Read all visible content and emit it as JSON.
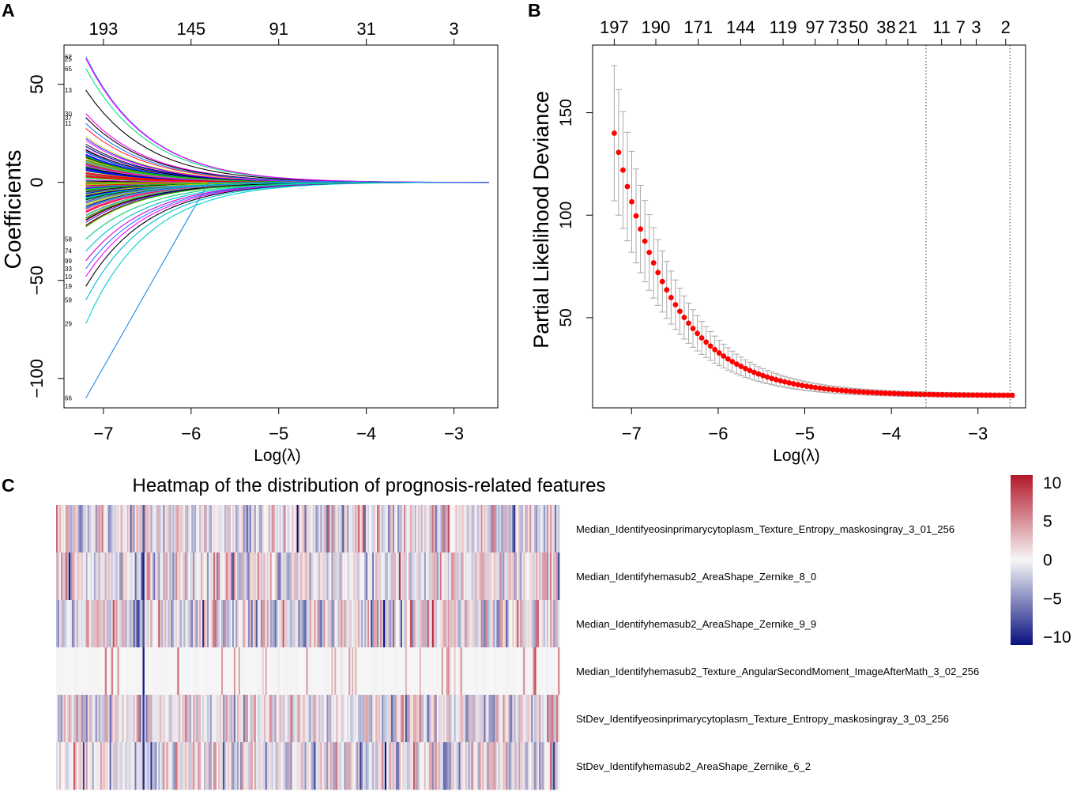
{
  "panels": {
    "a": {
      "label": "A"
    },
    "b": {
      "label": "B"
    },
    "c": {
      "label": "C"
    }
  },
  "chart_data": [
    {
      "id": "A",
      "type": "line",
      "title": "",
      "xlabel": "Log(λ)",
      "ylabel": "Coefficients",
      "xlim": [
        -7.45,
        -2.5
      ],
      "ylim": [
        -115,
        70
      ],
      "x_ticks": [
        -7,
        -6,
        -5,
        -4,
        -3
      ],
      "y_ticks": [
        50,
        0,
        -50,
        -100
      ],
      "top_axis": {
        "ticks_x": [
          -7.0,
          -6.0,
          -5.0,
          -4.0,
          -3.0
        ],
        "labels": [
          "193",
          "145",
          "91",
          "31",
          "3"
        ]
      },
      "lambda_start": -7.2,
      "lambda_end": -2.6,
      "series_count": 197,
      "featured_paths": [
        {
          "end_coef": -110,
          "label": "66",
          "color": "#1e88e5",
          "shape": "linear"
        },
        {
          "end_coef": -72,
          "label": "29",
          "color": "#00cfcf",
          "shape": "fast"
        },
        {
          "end_coef": -60,
          "label": "59",
          "color": "#00bcd4",
          "shape": "fast"
        },
        {
          "end_coef": -53,
          "label": "19",
          "color": "#000000",
          "shape": "fast"
        },
        {
          "end_coef": -48,
          "label": "10",
          "color": "#ff00ff",
          "shape": "fast"
        },
        {
          "end_coef": -44,
          "label": "33",
          "color": "#2979ff",
          "shape": "fast"
        },
        {
          "end_coef": -40,
          "label": "99",
          "color": "#cc00cc",
          "shape": "fast"
        },
        {
          "end_coef": -35,
          "label": "74",
          "color": "#00bcd4",
          "shape": "fast"
        },
        {
          "end_coef": -29,
          "label": "58",
          "color": "#00e676",
          "shape": "fast"
        },
        {
          "end_coef": 58,
          "label": "65",
          "color": "#00e676",
          "shape": "fast"
        },
        {
          "end_coef": 47,
          "label": "13",
          "color": "#000000",
          "shape": "fast"
        },
        {
          "end_coef": 64,
          "label": "62",
          "color": "#2979ff",
          "shape": "fast"
        },
        {
          "end_coef": 63,
          "label": "25",
          "color": "#ff00ff",
          "shape": "fast"
        },
        {
          "end_coef": 35,
          "label": "30",
          "color": "#ff00ff",
          "shape": "fast"
        },
        {
          "end_coef": 33,
          "label": "37",
          "color": "#000000",
          "shape": "fast"
        },
        {
          "end_coef": 30,
          "label": "11",
          "color": "#2979ff",
          "shape": "fast"
        }
      ],
      "path_palette": [
        "#000000",
        "#ff0000",
        "#00cc00",
        "#0000ff",
        "#00cccc",
        "#ff00ff",
        "#cccc00",
        "#888888"
      ]
    },
    {
      "id": "B",
      "type": "scatter",
      "title": "",
      "xlabel": "Log(λ)",
      "ylabel": "Partial Likelihood Deviance",
      "xlim": [
        -7.45,
        -2.45
      ],
      "ylim": [
        6,
        183
      ],
      "x_ticks": [
        -7,
        -6,
        -5,
        -4,
        -3
      ],
      "y_ticks": [
        150,
        100,
        50
      ],
      "top_axis": {
        "ticks_x": [
          -7.2,
          -6.72,
          -6.23,
          -5.74,
          -5.25,
          -4.88,
          -4.62,
          -4.38,
          -4.06,
          -3.81,
          -3.42,
          -3.2,
          -3.02,
          -2.68
        ],
        "labels": [
          "197",
          "190",
          "171",
          "144",
          "119",
          "97",
          "73",
          "50",
          "38",
          "21",
          "11",
          "7",
          "3",
          "2"
        ]
      },
      "points": {
        "x_start": -7.2,
        "x_step": 0.0505,
        "count": 92,
        "deviance_start": 140,
        "deviance_min": 12,
        "decay_rate": 1.5,
        "error_bar_start": 33,
        "error_bar_min": 1,
        "error_bar_decay": 1.5
      },
      "reference_lines_x": [
        -3.6,
        -2.63
      ],
      "point_color": "#ff0000",
      "error_bar_color": "#a8a8a8"
    },
    {
      "id": "C",
      "type": "heatmap",
      "title": "Heatmap of the distribution of prognosis-related  features",
      "rows": [
        "Median_Identifyeosinprimarycytoplasm_Texture_Entropy_maskosingray_3_01_256",
        "Median_Identifyhemasub2_AreaShape_Zernike_8_0",
        "Median_Identifyhemasub2_AreaShape_Zernike_9_9",
        "Median_Identifyhemasub2_Texture_AngularSecondMoment_ImageAfterMath_3_02_256",
        "StDev_Identifyeosinprimarycytoplasm_Texture_Entropy_maskosingray_3_03_256",
        "StDev_Identifyhemasub2_AreaShape_Zernike_6_2"
      ],
      "column_count": 320,
      "row_spread": [
        3.2,
        3.0,
        3.4,
        1.2,
        3.0,
        3.0
      ],
      "sparse_rows": [
        3
      ],
      "color_scale": {
        "min": -11,
        "max": 11,
        "low_color": "#08107e",
        "mid_color": "#f7f7f7",
        "high_color": "#b2182b",
        "ticks": [
          10,
          5,
          0,
          -5,
          -10
        ],
        "tick_labels": [
          "10",
          "5",
          "0",
          "−5",
          "−10"
        ]
      }
    }
  ]
}
